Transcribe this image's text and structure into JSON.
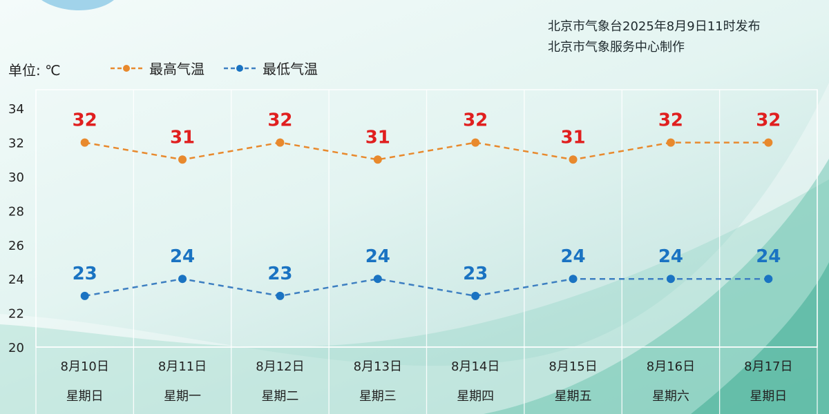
{
  "header": {
    "issuer_line1": "北京市气象台2025年8月9日11时发布",
    "issuer_line2": "北京市气象服务中心制作"
  },
  "colors": {
    "high": "#e8892d",
    "low": "#3d7fc1",
    "high_label": "#e01f1f",
    "low_label": "#1a73c2",
    "grid": "#ffffff"
  },
  "chart_data": {
    "type": "line",
    "unit_label": "单位: ℃",
    "ylim": [
      20,
      34
    ],
    "yticks": [
      "34",
      "32",
      "30",
      "28",
      "26",
      "24",
      "22",
      "20"
    ],
    "ytick_values": [
      34,
      32,
      30,
      28,
      26,
      24,
      22,
      20
    ],
    "grid": true,
    "legend_position": "top-left",
    "categories": [
      "8月10日",
      "8月11日",
      "8月12日",
      "8月13日",
      "8月14日",
      "8月15日",
      "8月16日",
      "8月17日"
    ],
    "weekdays": [
      "星期日",
      "星期一",
      "星期二",
      "星期三",
      "星期四",
      "星期五",
      "星期六",
      "星期日"
    ],
    "series": [
      {
        "name": "最高气温",
        "values": [
          32,
          31,
          32,
          31,
          32,
          31,
          32,
          32
        ],
        "labels": [
          "32",
          "31",
          "32",
          "31",
          "32",
          "31",
          "32",
          "32"
        ]
      },
      {
        "name": "最低气温",
        "values": [
          23,
          24,
          23,
          24,
          23,
          24,
          24,
          24
        ],
        "labels": [
          "23",
          "24",
          "23",
          "24",
          "23",
          "24",
          "24",
          "24"
        ]
      }
    ]
  }
}
